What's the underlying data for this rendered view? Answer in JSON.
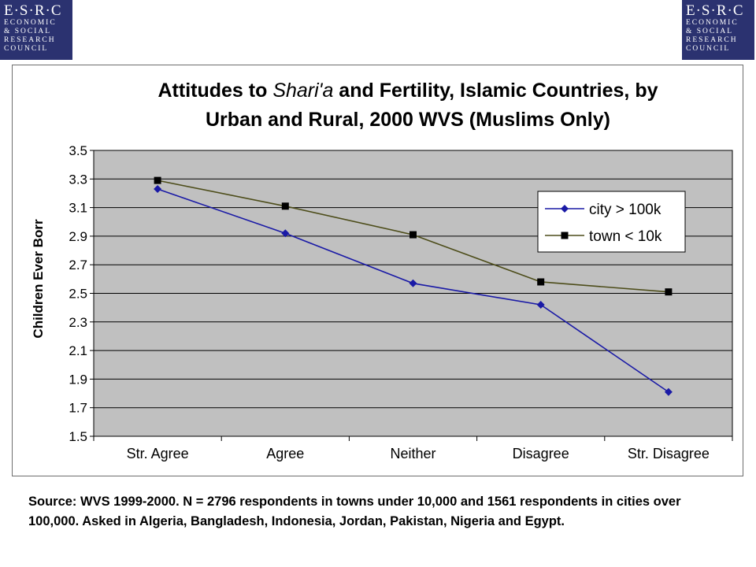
{
  "logos": {
    "left": {
      "line1": "E·S·R·C",
      "line2": "ECONOMIC",
      "line3": "& SOCIAL",
      "line4": "RESEARCH",
      "line5": "COUNCIL"
    },
    "right": {
      "line1": "E·S·R·C",
      "line2": "ECONOMIC",
      "line3": "& SOCIAL",
      "line4": "RESEARCH",
      "line5": "COUNCIL"
    }
  },
  "chart_data": {
    "type": "line",
    "title": "Attitudes to Shari'a and Fertility, Islamic Countries, by Urban and Rural, 2000 WVS (Muslims Only)",
    "title_parts": {
      "line1_pre": "Attitudes to ",
      "line1_italic": "Shari'a",
      "line1_post": " and Fertility, Islamic Countries, by",
      "line2": "Urban and Rural, 2000 WVS (Muslims Only)"
    },
    "xlabel": "",
    "ylabel": "Children Ever Borr",
    "categories": [
      "Str. Agree",
      "Agree",
      "Neither",
      "Disagree",
      "Str. Disagree"
    ],
    "ylim": [
      1.5,
      3.5
    ],
    "yticks": [
      "1.5",
      "1.7",
      "1.9",
      "2.1",
      "2.3",
      "2.5",
      "2.7",
      "2.9",
      "3.1",
      "3.3",
      "3.5"
    ],
    "grid": true,
    "legend_position": "right",
    "plot_background": "#c0c0c0",
    "series": [
      {
        "name": "city > 100k",
        "values": [
          3.23,
          2.92,
          2.57,
          2.42,
          1.81
        ],
        "color": "#1a1aa6",
        "marker": "diamond"
      },
      {
        "name": "town < 10k",
        "values": [
          3.29,
          3.11,
          2.91,
          2.58,
          2.51
        ],
        "color": "#4d4d1a",
        "marker": "square"
      }
    ]
  },
  "source_note": "Source: WVS 1999-2000. N = 2796 respondents in towns under 10,000 and 1561 respondents in cities over 100,000. Asked in Algeria, Bangladesh, Indonesia, Jordan, Pakistan, Nigeria and Egypt."
}
